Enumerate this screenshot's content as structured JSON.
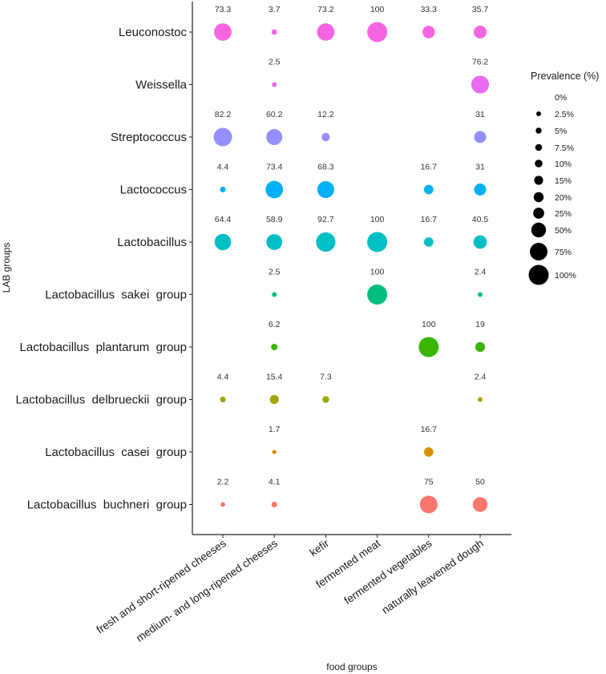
{
  "chart_data": {
    "type": "scatter",
    "subtype": "bubble",
    "xlabel": "food groups",
    "ylabel": "LAB groups",
    "categories_x": [
      "fresh and short-ripened cheeses",
      "medium- and long-ripened cheeses",
      "kefir",
      "fermented meat",
      "fermented vegetables",
      "naturally leavened dough"
    ],
    "categories_y": [
      "Leuconostoc",
      "Weissella",
      "Streptococcus",
      "Lactococcus",
      "Lactobacillus",
      "Lactobacillus  sakei  group",
      "Lactobacillus  plantarum  group",
      "Lactobacillus  delbrueckii  group",
      "Lactobacillus  casei  group",
      "Lactobacillus  buchneri  group"
    ],
    "series": [
      {
        "name": "Leuconostoc",
        "color": "#f564e3",
        "values": [
          73.3,
          3.7,
          73.2,
          100,
          33.3,
          35.7
        ],
        "labels": [
          "73.3",
          "3.7",
          "73.2",
          "100",
          "33.3",
          "35.7"
        ]
      },
      {
        "name": "Weissella",
        "color": "#e76bf3",
        "values": [
          null,
          2.5,
          null,
          null,
          null,
          76.2
        ],
        "labels": [
          "",
          "2.5",
          "",
          "",
          "",
          "76.2"
        ]
      },
      {
        "name": "Streptococcus",
        "color": "#9590ff",
        "values": [
          82.2,
          60.2,
          12.2,
          null,
          null,
          31
        ],
        "labels": [
          "82.2",
          "60.2",
          "12.2",
          "",
          "",
          "31"
        ]
      },
      {
        "name": "Lactococcus",
        "color": "#00b0f6",
        "values": [
          4.4,
          73.4,
          68.3,
          null,
          16.7,
          31
        ],
        "labels": [
          "4.4",
          "73.4",
          "68.3",
          "",
          "16.7",
          "31"
        ]
      },
      {
        "name": "Lactobacillus",
        "color": "#00bfc4",
        "values": [
          64.4,
          58.9,
          92.7,
          100,
          16.7,
          40.5
        ],
        "labels": [
          "64.4",
          "58.9",
          "92.7",
          "100",
          "16.7",
          "40.5"
        ]
      },
      {
        "name": "Lactobacillus sakei group",
        "color": "#00bf7d",
        "values": [
          null,
          2.5,
          null,
          100,
          null,
          2.4
        ],
        "labels": [
          "",
          "2.5",
          "",
          "100",
          "",
          "2.4"
        ]
      },
      {
        "name": "Lactobacillus plantarum group",
        "color": "#39b600",
        "values": [
          null,
          6.2,
          null,
          null,
          100,
          19
        ],
        "labels": [
          "",
          "6.2",
          "",
          "",
          "100",
          "19"
        ]
      },
      {
        "name": "Lactobacillus delbrueckii group",
        "color": "#a3a500",
        "values": [
          4.4,
          15.4,
          7.3,
          null,
          null,
          2.4
        ],
        "labels": [
          "4.4",
          "15.4",
          "7.3",
          "",
          "",
          "2.4"
        ]
      },
      {
        "name": "Lactobacillus casei group",
        "color": "#d89000",
        "values": [
          null,
          1.7,
          null,
          null,
          16.7,
          null
        ],
        "labels": [
          "",
          "1.7",
          "",
          "",
          "16.7",
          ""
        ]
      },
      {
        "name": "Lactobacillus buchneri group",
        "color": "#f8766d",
        "values": [
          2.2,
          4.1,
          null,
          null,
          75,
          50
        ],
        "labels": [
          "2.2",
          "4.1",
          "",
          "",
          "75",
          "50"
        ]
      }
    ],
    "legend": {
      "title": "Prevalence (%)",
      "position": "right",
      "entries": [
        {
          "label": "0%",
          "value": 0
        },
        {
          "label": "2.5%",
          "value": 2.5
        },
        {
          "label": "5%",
          "value": 5
        },
        {
          "label": "7.5%",
          "value": 7.5
        },
        {
          "label": "10%",
          "value": 10
        },
        {
          "label": "15%",
          "value": 15
        },
        {
          "label": "20%",
          "value": 20
        },
        {
          "label": "25%",
          "value": 25
        },
        {
          "label": "50%",
          "value": 50
        },
        {
          "label": "75%",
          "value": 75
        },
        {
          "label": "100%",
          "value": 100
        }
      ]
    },
    "grid": false
  }
}
